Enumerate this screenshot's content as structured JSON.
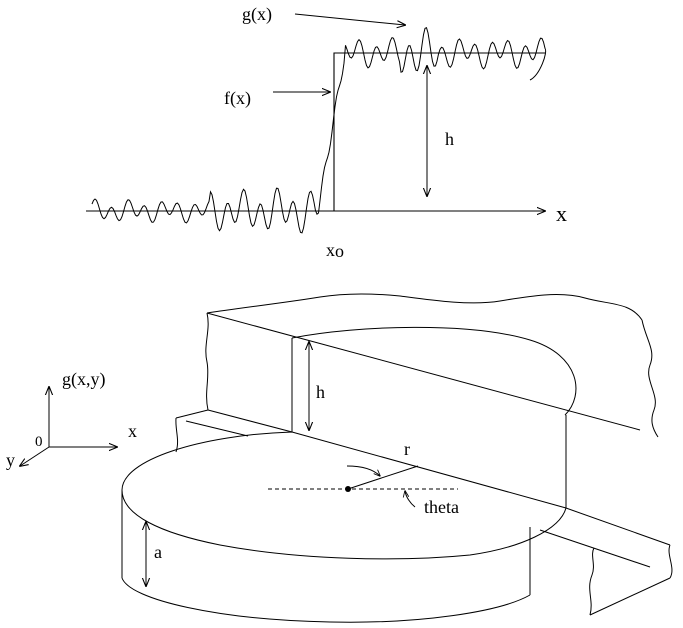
{
  "top_figure": {
    "label_g": "g(x)",
    "label_f": "f(x)",
    "label_h": "h",
    "label_x_axis": "x",
    "label_x0": "x",
    "label_x0_sub": "o"
  },
  "bottom_figure": {
    "label_g_xy": "g(x,y)",
    "label_origin": "0",
    "label_x": "x",
    "label_y": "y",
    "label_h": "h",
    "label_r": "r",
    "label_theta": "theta",
    "label_a": "a"
  }
}
